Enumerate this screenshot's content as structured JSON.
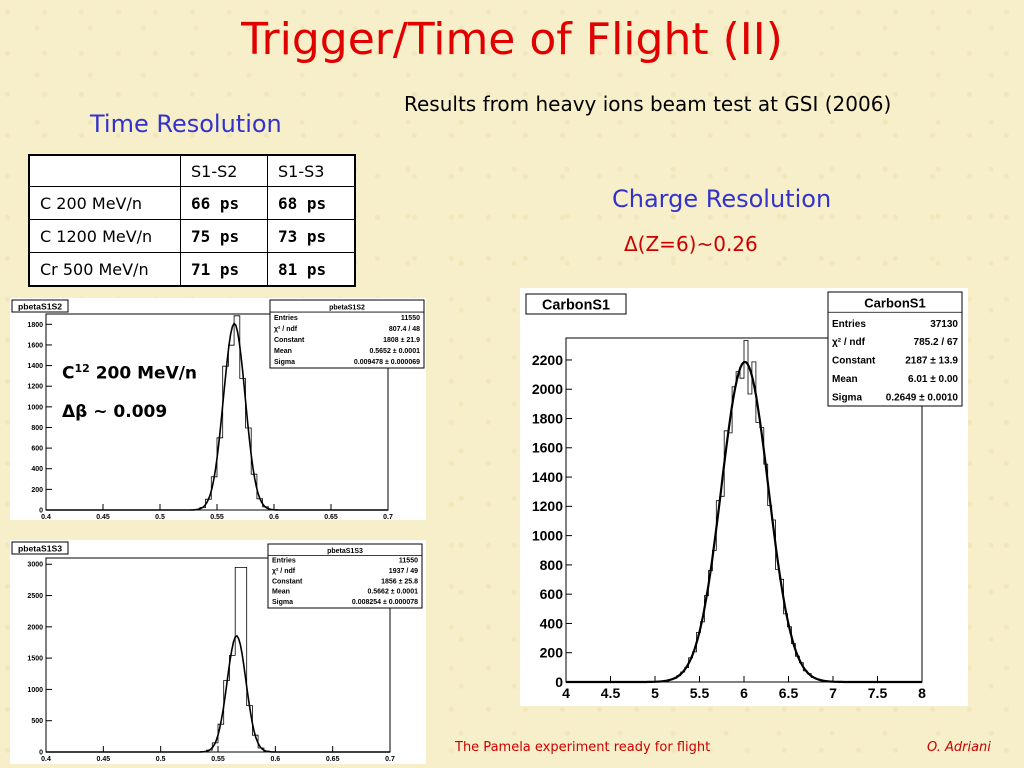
{
  "title": "Trigger/Time of Flight (II)",
  "subtitle": "Results from heavy ions beam test at GSI (2006)",
  "time_resolution": {
    "heading": "Time Resolution",
    "columns": [
      "",
      "S1-S2",
      "S1-S3"
    ],
    "rows": [
      {
        "label": "C 200 MeV/n",
        "s1s2": "66 ps",
        "s1s3": "68 ps"
      },
      {
        "label": "C 1200 MeV/n",
        "s1s2": "75 ps",
        "s1s3": "73 ps"
      },
      {
        "label": "Cr 500 MeV/n",
        "s1s2": "71 ps",
        "s1s3": "81 ps"
      }
    ]
  },
  "charge_resolution": {
    "heading": "Charge Resolution",
    "value": "Δ(Z=6)~0.26"
  },
  "annotation": {
    "isotope_base": "C",
    "isotope_sup": "12",
    "isotope_rest": " 200 MeV/n",
    "delta_beta": "Δβ ~ 0.009"
  },
  "footer": {
    "left": "The Pamela experiment ready for flight",
    "right": "O. Adriani"
  },
  "chart_data": [
    {
      "type": "histogram",
      "title": "pbetaS1S2",
      "x_ticks": [
        "0.4",
        "0.45",
        "0.5",
        "0.55",
        "0.6",
        "0.65",
        "0.7"
      ],
      "y_ticks": [
        "0",
        "200",
        "400",
        "600",
        "800",
        "1000",
        "1200",
        "1400",
        "1600",
        "1800"
      ],
      "xlim": [
        0.4,
        0.7
      ],
      "ylim": [
        0,
        1900
      ],
      "fit": {
        "constant": 1808,
        "mean": 0.5652,
        "sigma": 0.009478
      },
      "stats": {
        "name": "pbetaS1S2",
        "rows": [
          {
            "k": "Entries",
            "v": "11550"
          },
          {
            "k": "χ² / ndf",
            "v": "807.4 / 48"
          },
          {
            "k": "Constant",
            "v": "1808 ± 21.9"
          },
          {
            "k": "Mean",
            "v": "0.5652 ± 0.0001"
          },
          {
            "k": "Sigma",
            "v": "0.009478 ± 0.000069"
          }
        ]
      }
    },
    {
      "type": "histogram",
      "title": "pbetaS1S3",
      "x_ticks": [
        "0.4",
        "0.45",
        "0.5",
        "0.55",
        "0.6",
        "0.65",
        "0.7"
      ],
      "y_ticks": [
        "0",
        "500",
        "1000",
        "1500",
        "2000",
        "2500",
        "3000"
      ],
      "xlim": [
        0.4,
        0.7
      ],
      "ylim": [
        0,
        3100
      ],
      "fit": {
        "constant": 1856,
        "mean": 0.5662,
        "sigma": 0.008254
      },
      "spike": {
        "x": 0.571,
        "y": 2950
      },
      "stats": {
        "name": "pbetaS1S3",
        "rows": [
          {
            "k": "Entries",
            "v": "11550"
          },
          {
            "k": "χ² / ndf",
            "v": "1937 / 49"
          },
          {
            "k": "Constant",
            "v": "1856 ± 25.8"
          },
          {
            "k": "Mean",
            "v": "0.5662 ± 0.0001"
          },
          {
            "k": "Sigma",
            "v": "0.008254 ± 0.000078"
          }
        ]
      }
    },
    {
      "type": "histogram",
      "title": "CarbonS1",
      "x_ticks": [
        "4",
        "4.5",
        "5",
        "5.5",
        "6",
        "6.5",
        "7",
        "7.5",
        "8"
      ],
      "y_ticks": [
        "0",
        "200",
        "400",
        "600",
        "800",
        "1000",
        "1200",
        "1400",
        "1600",
        "1800",
        "2000",
        "2200"
      ],
      "xlim": [
        4,
        8
      ],
      "ylim": [
        0,
        2350
      ],
      "fit": {
        "constant": 2187,
        "mean": 6.01,
        "sigma": 0.2649
      },
      "stats": {
        "name": "CarbonS1",
        "rows": [
          {
            "k": "Entries",
            "v": "37130"
          },
          {
            "k": "χ² / ndf",
            "v": "785.2 / 67"
          },
          {
            "k": "Constant",
            "v": "2187 ± 13.9"
          },
          {
            "k": "Mean",
            "v": "6.01 ± 0.00"
          },
          {
            "k": "Sigma",
            "v": "0.2649 ± 0.0010"
          }
        ]
      }
    }
  ]
}
